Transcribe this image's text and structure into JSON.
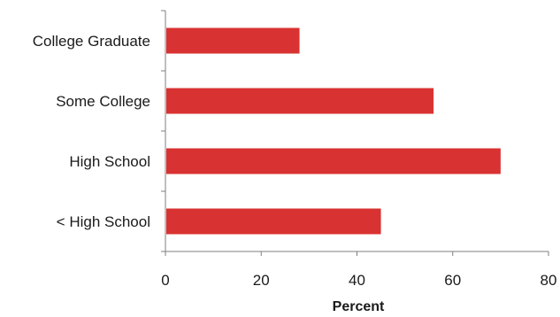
{
  "chart_data": {
    "type": "bar",
    "orientation": "horizontal",
    "categories": [
      "College Graduate",
      "Some College",
      "High School",
      "< High School"
    ],
    "values": [
      28,
      56,
      70,
      45
    ],
    "xlabel": "Percent",
    "ylabel": "",
    "xlim": [
      0,
      80
    ],
    "xticks": [
      0,
      20,
      40,
      60,
      80
    ],
    "grid": false,
    "legend": "none",
    "bar_color": "#d93232"
  }
}
